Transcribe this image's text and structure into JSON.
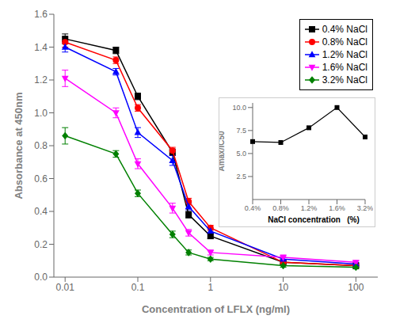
{
  "chart_data": [
    {
      "type": "line",
      "xlabel": "Concentration of LFLX (ng/ml)",
      "ylabel": "Absorbance at 450nm",
      "log": "x",
      "xlim": [
        0.007,
        200
      ],
      "xticks": [
        0.01,
        0.1,
        1,
        10,
        100
      ],
      "ylim": [
        0,
        1.6
      ],
      "yticks": [
        {
          "value": 0.0,
          "label": "0.0"
        },
        0.2,
        0.4,
        0.6,
        0.8,
        {
          "value": 1.0,
          "label": "1.0"
        },
        1.2,
        1.4,
        1.6
      ],
      "legend": "upper right",
      "x": [
        0.01,
        0.05,
        0.1,
        0.3,
        0.5,
        1.0,
        10,
        100
      ],
      "series": [
        {
          "name": "0.4% NaCl",
          "color": "#000000",
          "marker": "square",
          "values": [
            1.45,
            1.38,
            1.1,
            0.76,
            0.38,
            0.25,
            0.09,
            0.07
          ],
          "yerr": [
            0.03,
            0.02,
            0.02,
            0.02,
            0.02,
            0.015,
            0.01,
            0.01
          ]
        },
        {
          "name": "0.8% NaCl",
          "color": "#ff0000",
          "marker": "circle",
          "values": [
            1.43,
            1.32,
            1.03,
            0.77,
            0.46,
            0.3,
            0.09,
            0.07
          ],
          "yerr": [
            0.03,
            0.02,
            0.02,
            0.02,
            0.02,
            0.015,
            0.01,
            0.01
          ]
        },
        {
          "name": "1.2% NaCl",
          "color": "#0000ff",
          "marker": "triangle-up",
          "values": [
            1.4,
            1.25,
            0.88,
            0.71,
            0.43,
            0.28,
            0.11,
            0.08
          ],
          "yerr": [
            0.03,
            0.02,
            0.03,
            0.03,
            0.02,
            0.015,
            0.01,
            0.01
          ]
        },
        {
          "name": "1.6% NaCl",
          "color": "#ff00ff",
          "marker": "triangle-down",
          "values": [
            1.21,
            1.0,
            0.69,
            0.42,
            0.27,
            0.15,
            0.12,
            0.09
          ],
          "yerr": [
            0.05,
            0.03,
            0.03,
            0.03,
            0.02,
            0.015,
            0.015,
            0.01
          ]
        },
        {
          "name": "3.2% NaCl",
          "color": "#008000",
          "marker": "diamond",
          "values": [
            0.86,
            0.75,
            0.51,
            0.26,
            0.15,
            0.11,
            0.07,
            0.06
          ],
          "yerr": [
            0.05,
            0.02,
            0.02,
            0.02,
            0.015,
            0.01,
            0.01,
            0.01
          ]
        }
      ]
    },
    {
      "type": "line",
      "xlabel": "NaCl concentration   (%)",
      "ylabel": "Amax/IC50",
      "categories": [
        "0.4%",
        "0.8%",
        "1.2%",
        "1.6%",
        "3.2%"
      ],
      "values": [
        6.3,
        6.2,
        7.8,
        10.0,
        6.8
      ],
      "color": "#000000",
      "marker": "square",
      "ylim": [
        0,
        10.5
      ],
      "yticks": [
        2.5,
        {
          "value": 5.0,
          "label": "5.0"
        },
        7.5,
        {
          "value": 10.0,
          "label": "10.0"
        }
      ]
    }
  ]
}
